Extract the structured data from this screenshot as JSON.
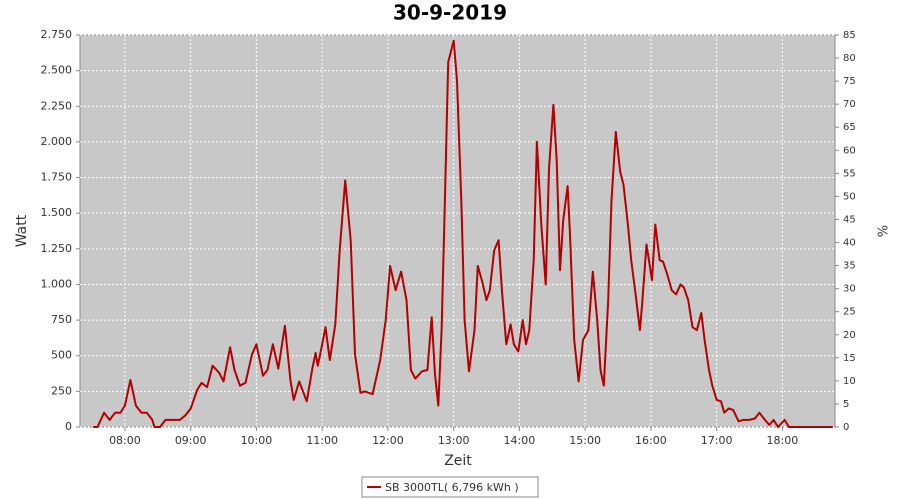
{
  "chart_data": {
    "type": "line",
    "title": "30-9-2019",
    "x_label": "Zeit",
    "y_label": "Watt",
    "y2_label": "%",
    "x": [
      "07:31",
      "07:35",
      "07:41",
      "07:46",
      "07:51",
      "07:56",
      "08:00",
      "08:05",
      "08:10",
      "08:15",
      "08:20",
      "08:25",
      "08:27",
      "08:32",
      "08:37",
      "08:41",
      "08:50",
      "08:55",
      "09:00",
      "09:06",
      "09:10",
      "09:15",
      "09:20",
      "09:26",
      "09:30",
      "09:36",
      "09:40",
      "09:45",
      "09:50",
      "09:56",
      "10:00",
      "10:06",
      "10:10",
      "10:15",
      "10:20",
      "10:26",
      "10:31",
      "10:34",
      "10:39",
      "10:44",
      "10:46",
      "10:51",
      "10:54",
      "10:56",
      "11:00",
      "11:03",
      "11:07",
      "11:12",
      "11:16",
      "11:21",
      "11:26",
      "11:30",
      "11:35",
      "11:39",
      "11:46",
      "11:53",
      "11:58",
      "12:02",
      "12:07",
      "12:12",
      "12:17",
      "12:21",
      "12:25",
      "12:31",
      "12:36",
      "12:40",
      "12:43",
      "12:46",
      "12:49",
      "12:52",
      "12:55",
      "13:00",
      "13:03",
      "13:07",
      "13:10",
      "13:14",
      "13:19",
      "13:22",
      "13:26",
      "13:30",
      "13:33",
      "13:37",
      "13:41",
      "13:44",
      "13:48",
      "13:52",
      "13:55",
      "13:59",
      "14:03",
      "14:06",
      "14:09",
      "14:13",
      "14:16",
      "14:20",
      "14:24",
      "14:27",
      "14:31",
      "14:34",
      "14:37",
      "14:40",
      "14:44",
      "14:46",
      "14:50",
      "14:54",
      "14:58",
      "15:03",
      "15:07",
      "15:11",
      "15:14",
      "15:17",
      "15:21",
      "15:24",
      "15:28",
      "15:32",
      "15:35",
      "15:39",
      "15:42",
      "15:46",
      "15:50",
      "15:52",
      "15:56",
      "16:01",
      "16:04",
      "16:08",
      "16:11",
      "16:15",
      "16:19",
      "16:23",
      "16:27",
      "16:30",
      "16:34",
      "16:38",
      "16:42",
      "16:46",
      "16:49",
      "16:53",
      "16:56",
      "17:00",
      "17:04",
      "17:07",
      "17:11",
      "17:15",
      "17:20",
      "17:24",
      "17:30",
      "17:35",
      "17:39",
      "17:44",
      "17:48",
      "17:52",
      "17:56",
      "18:02",
      "18:06",
      "18:46"
    ],
    "series": [
      {
        "name": "SB 3000TL( 6,796 kWh )",
        "color": "#b40000",
        "values": [
          0,
          0,
          100,
          50,
          100,
          100,
          150,
          330,
          150,
          100,
          100,
          50,
          0,
          0,
          50,
          50,
          50,
          80,
          130,
          260,
          310,
          280,
          430,
          380,
          320,
          560,
          400,
          290,
          310,
          510,
          580,
          360,
          400,
          580,
          410,
          710,
          330,
          190,
          320,
          220,
          180,
          410,
          520,
          430,
          580,
          700,
          470,
          720,
          1240,
          1730,
          1310,
          510,
          240,
          250,
          230,
          470,
          750,
          1130,
          960,
          1090,
          890,
          400,
          340,
          390,
          400,
          770,
          370,
          150,
          680,
          1590,
          2560,
          2710,
          2430,
          1590,
          750,
          390,
          680,
          1130,
          1020,
          890,
          960,
          1240,
          1310,
          960,
          580,
          720,
          580,
          530,
          750,
          580,
          680,
          1170,
          2000,
          1420,
          1000,
          1810,
          2260,
          1870,
          1100,
          1450,
          1690,
          1380,
          610,
          320,
          610,
          680,
          1090,
          750,
          400,
          290,
          890,
          1590,
          2070,
          1790,
          1700,
          1420,
          1170,
          930,
          680,
          860,
          1280,
          1030,
          1420,
          1170,
          1160,
          1070,
          960,
          930,
          1000,
          980,
          890,
          700,
          680,
          800,
          610,
          400,
          290,
          190,
          180,
          100,
          130,
          120,
          40,
          50,
          50,
          60,
          100,
          50,
          15,
          50,
          0,
          50,
          0,
          0
        ]
      }
    ],
    "xlim": [
      "07:19",
      "18:48"
    ],
    "xticks": [
      "08:00",
      "09:00",
      "10:00",
      "11:00",
      "12:00",
      "13:00",
      "14:00",
      "15:00",
      "16:00",
      "17:00",
      "18:00"
    ],
    "ylim": [
      0,
      2750
    ],
    "yticks": [
      0,
      250,
      500,
      750,
      {
        "value": 1000,
        "label": "1.000"
      },
      {
        "value": 1250,
        "label": "1.250"
      },
      {
        "value": 1500,
        "label": "1.500"
      },
      {
        "value": 1750,
        "label": "1.750"
      },
      {
        "value": 2000,
        "label": "2.000"
      },
      {
        "value": 2250,
        "label": "2.250"
      },
      {
        "value": 2500,
        "label": "2.500"
      },
      {
        "value": 2750,
        "label": "2.750"
      }
    ],
    "y2lim": [
      0,
      85
    ],
    "y2ticks": [
      0,
      5,
      10,
      15,
      20,
      25,
      30,
      35,
      40,
      45,
      50,
      55,
      60,
      65,
      70,
      75,
      80,
      85
    ],
    "grid": true
  }
}
